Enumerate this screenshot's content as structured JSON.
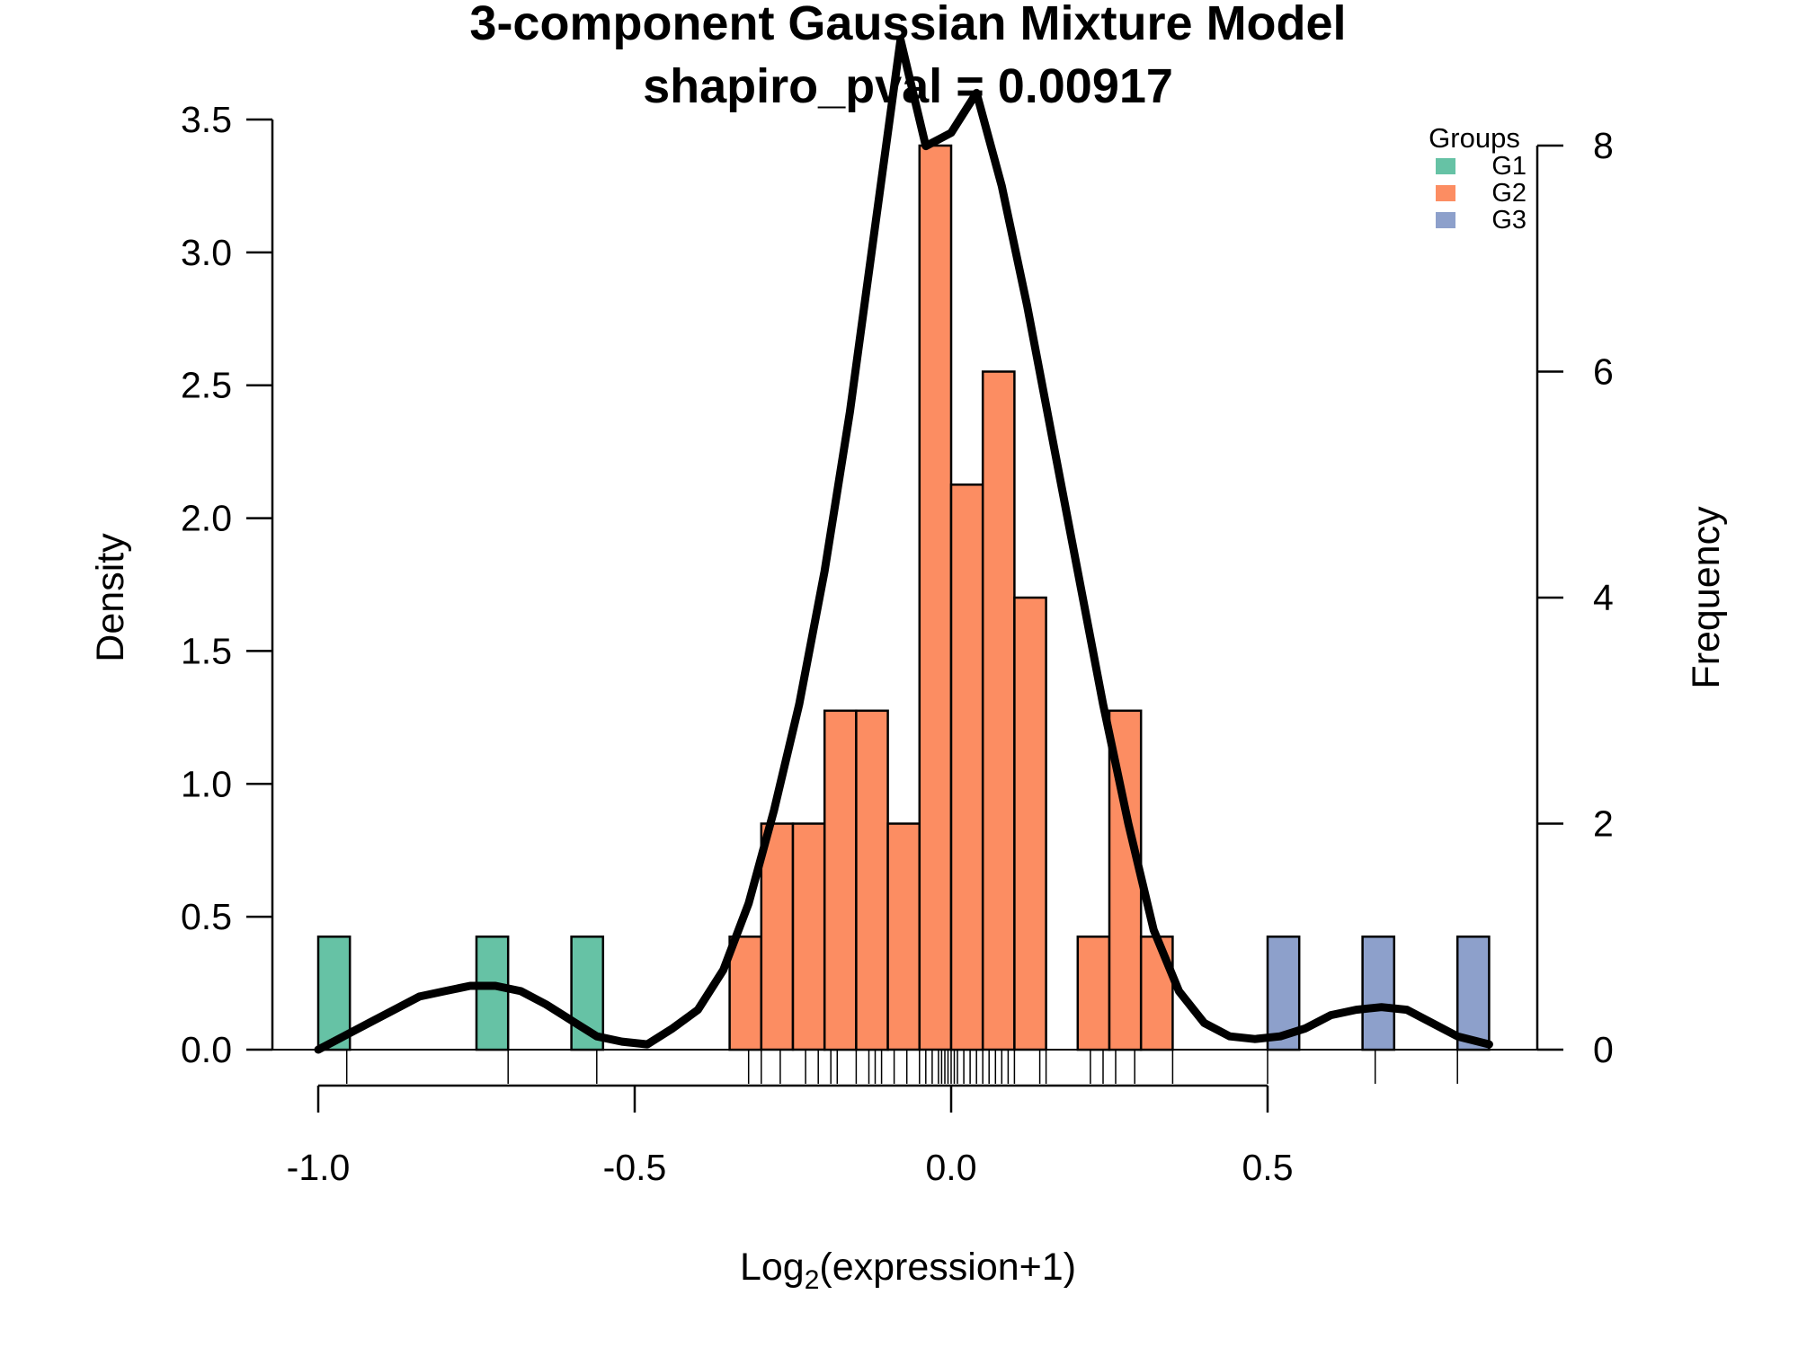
{
  "chart_data": {
    "type": "bar",
    "title": "3-component Gaussian Mixture Model",
    "subtitle": "shapiro_pval = 0.00917",
    "xlabel_main": "Log",
    "xlabel_sub": "2",
    "xlabel_rest": "(expression+1)",
    "ylabel_left": "Density",
    "ylabel_right": "Frequency",
    "xlim": [
      -1.0,
      0.85
    ],
    "ylim_left": [
      0,
      3.5
    ],
    "ylim_right": [
      0,
      8
    ],
    "x_ticks": [
      "-1.0",
      "-0.5",
      "0.0",
      "0.5"
    ],
    "x_tick_values": [
      -1.0,
      -0.5,
      0.0,
      0.5
    ],
    "y_left_ticks": [
      "0.0",
      "0.5",
      "1.0",
      "1.5",
      "2.0",
      "2.5",
      "3.0",
      "3.5"
    ],
    "y_left_tick_values": [
      0,
      0.5,
      1.0,
      1.5,
      2.0,
      2.5,
      3.0,
      3.5
    ],
    "y_right_ticks": [
      "0",
      "2",
      "4",
      "6",
      "8"
    ],
    "y_right_tick_values": [
      0,
      2,
      4,
      6,
      8
    ],
    "bin_width": 0.05,
    "legend": {
      "title": "Groups",
      "placement": "top-right",
      "entries": [
        {
          "name": "G1",
          "color": "#66c2a5"
        },
        {
          "name": "G2",
          "color": "#fc8d62"
        },
        {
          "name": "G3",
          "color": "#8da0cb"
        }
      ]
    },
    "bars": [
      {
        "x0": -1.0,
        "x1": -0.95,
        "count": 1,
        "group": "G1"
      },
      {
        "x0": -0.75,
        "x1": -0.7,
        "count": 1,
        "group": "G1"
      },
      {
        "x0": -0.6,
        "x1": -0.55,
        "count": 1,
        "group": "G1"
      },
      {
        "x0": -0.35,
        "x1": -0.3,
        "count": 1,
        "group": "G2"
      },
      {
        "x0": -0.3,
        "x1": -0.25,
        "count": 2,
        "group": "G2"
      },
      {
        "x0": -0.25,
        "x1": -0.2,
        "count": 2,
        "group": "G2"
      },
      {
        "x0": -0.2,
        "x1": -0.15,
        "count": 3,
        "group": "G2"
      },
      {
        "x0": -0.15,
        "x1": -0.1,
        "count": 3,
        "group": "G2"
      },
      {
        "x0": -0.1,
        "x1": -0.05,
        "count": 2,
        "group": "G2"
      },
      {
        "x0": -0.05,
        "x1": 0.0,
        "count": 8,
        "group": "G2"
      },
      {
        "x0": 0.0,
        "x1": 0.05,
        "count": 5,
        "group": "G2"
      },
      {
        "x0": 0.05,
        "x1": 0.1,
        "count": 6,
        "group": "G2"
      },
      {
        "x0": 0.1,
        "x1": 0.15,
        "count": 4,
        "group": "G2"
      },
      {
        "x0": 0.2,
        "x1": 0.25,
        "count": 1,
        "group": "G2"
      },
      {
        "x0": 0.25,
        "x1": 0.3,
        "count": 3,
        "group": "G2"
      },
      {
        "x0": 0.3,
        "x1": 0.35,
        "count": 1,
        "group": "G2"
      },
      {
        "x0": 0.5,
        "x1": 0.55,
        "count": 1,
        "group": "G3"
      },
      {
        "x0": 0.65,
        "x1": 0.7,
        "count": 1,
        "group": "G3"
      },
      {
        "x0": 0.8,
        "x1": 0.85,
        "count": 1,
        "group": "G3"
      }
    ],
    "density_curve": {
      "x": [
        -1.0,
        -0.96,
        -0.92,
        -0.88,
        -0.84,
        -0.8,
        -0.76,
        -0.72,
        -0.68,
        -0.64,
        -0.6,
        -0.56,
        -0.52,
        -0.48,
        -0.44,
        -0.4,
        -0.36,
        -0.32,
        -0.28,
        -0.24,
        -0.2,
        -0.16,
        -0.12,
        -0.08,
        -0.04,
        0.0,
        0.04,
        0.08,
        0.12,
        0.16,
        0.2,
        0.24,
        0.28,
        0.32,
        0.36,
        0.4,
        0.44,
        0.48,
        0.52,
        0.56,
        0.6,
        0.64,
        0.68,
        0.72,
        0.76,
        0.8,
        0.85
      ],
      "y": [
        0.0,
        0.05,
        0.1,
        0.15,
        0.2,
        0.22,
        0.24,
        0.24,
        0.22,
        0.17,
        0.11,
        0.05,
        0.03,
        0.02,
        0.08,
        0.15,
        0.3,
        0.55,
        0.9,
        1.3,
        1.8,
        2.4,
        3.1,
        3.8,
        3.4,
        3.45,
        3.6,
        3.25,
        2.8,
        2.3,
        1.8,
        1.3,
        0.85,
        0.45,
        0.22,
        0.1,
        0.05,
        0.04,
        0.05,
        0.08,
        0.13,
        0.15,
        0.16,
        0.15,
        0.1,
        0.05,
        0.02
      ]
    },
    "rug": [
      -0.955,
      -0.7,
      -0.56,
      -0.32,
      -0.3,
      -0.27,
      -0.23,
      -0.21,
      -0.19,
      -0.18,
      -0.15,
      -0.13,
      -0.12,
      -0.11,
      -0.09,
      -0.07,
      -0.05,
      -0.04,
      -0.03,
      -0.02,
      -0.015,
      -0.01,
      -0.005,
      0.0,
      0.005,
      0.01,
      0.02,
      0.03,
      0.04,
      0.05,
      0.06,
      0.07,
      0.08,
      0.09,
      0.1,
      0.14,
      0.15,
      0.22,
      0.24,
      0.26,
      0.29,
      0.35,
      0.5,
      0.67,
      0.8
    ]
  }
}
